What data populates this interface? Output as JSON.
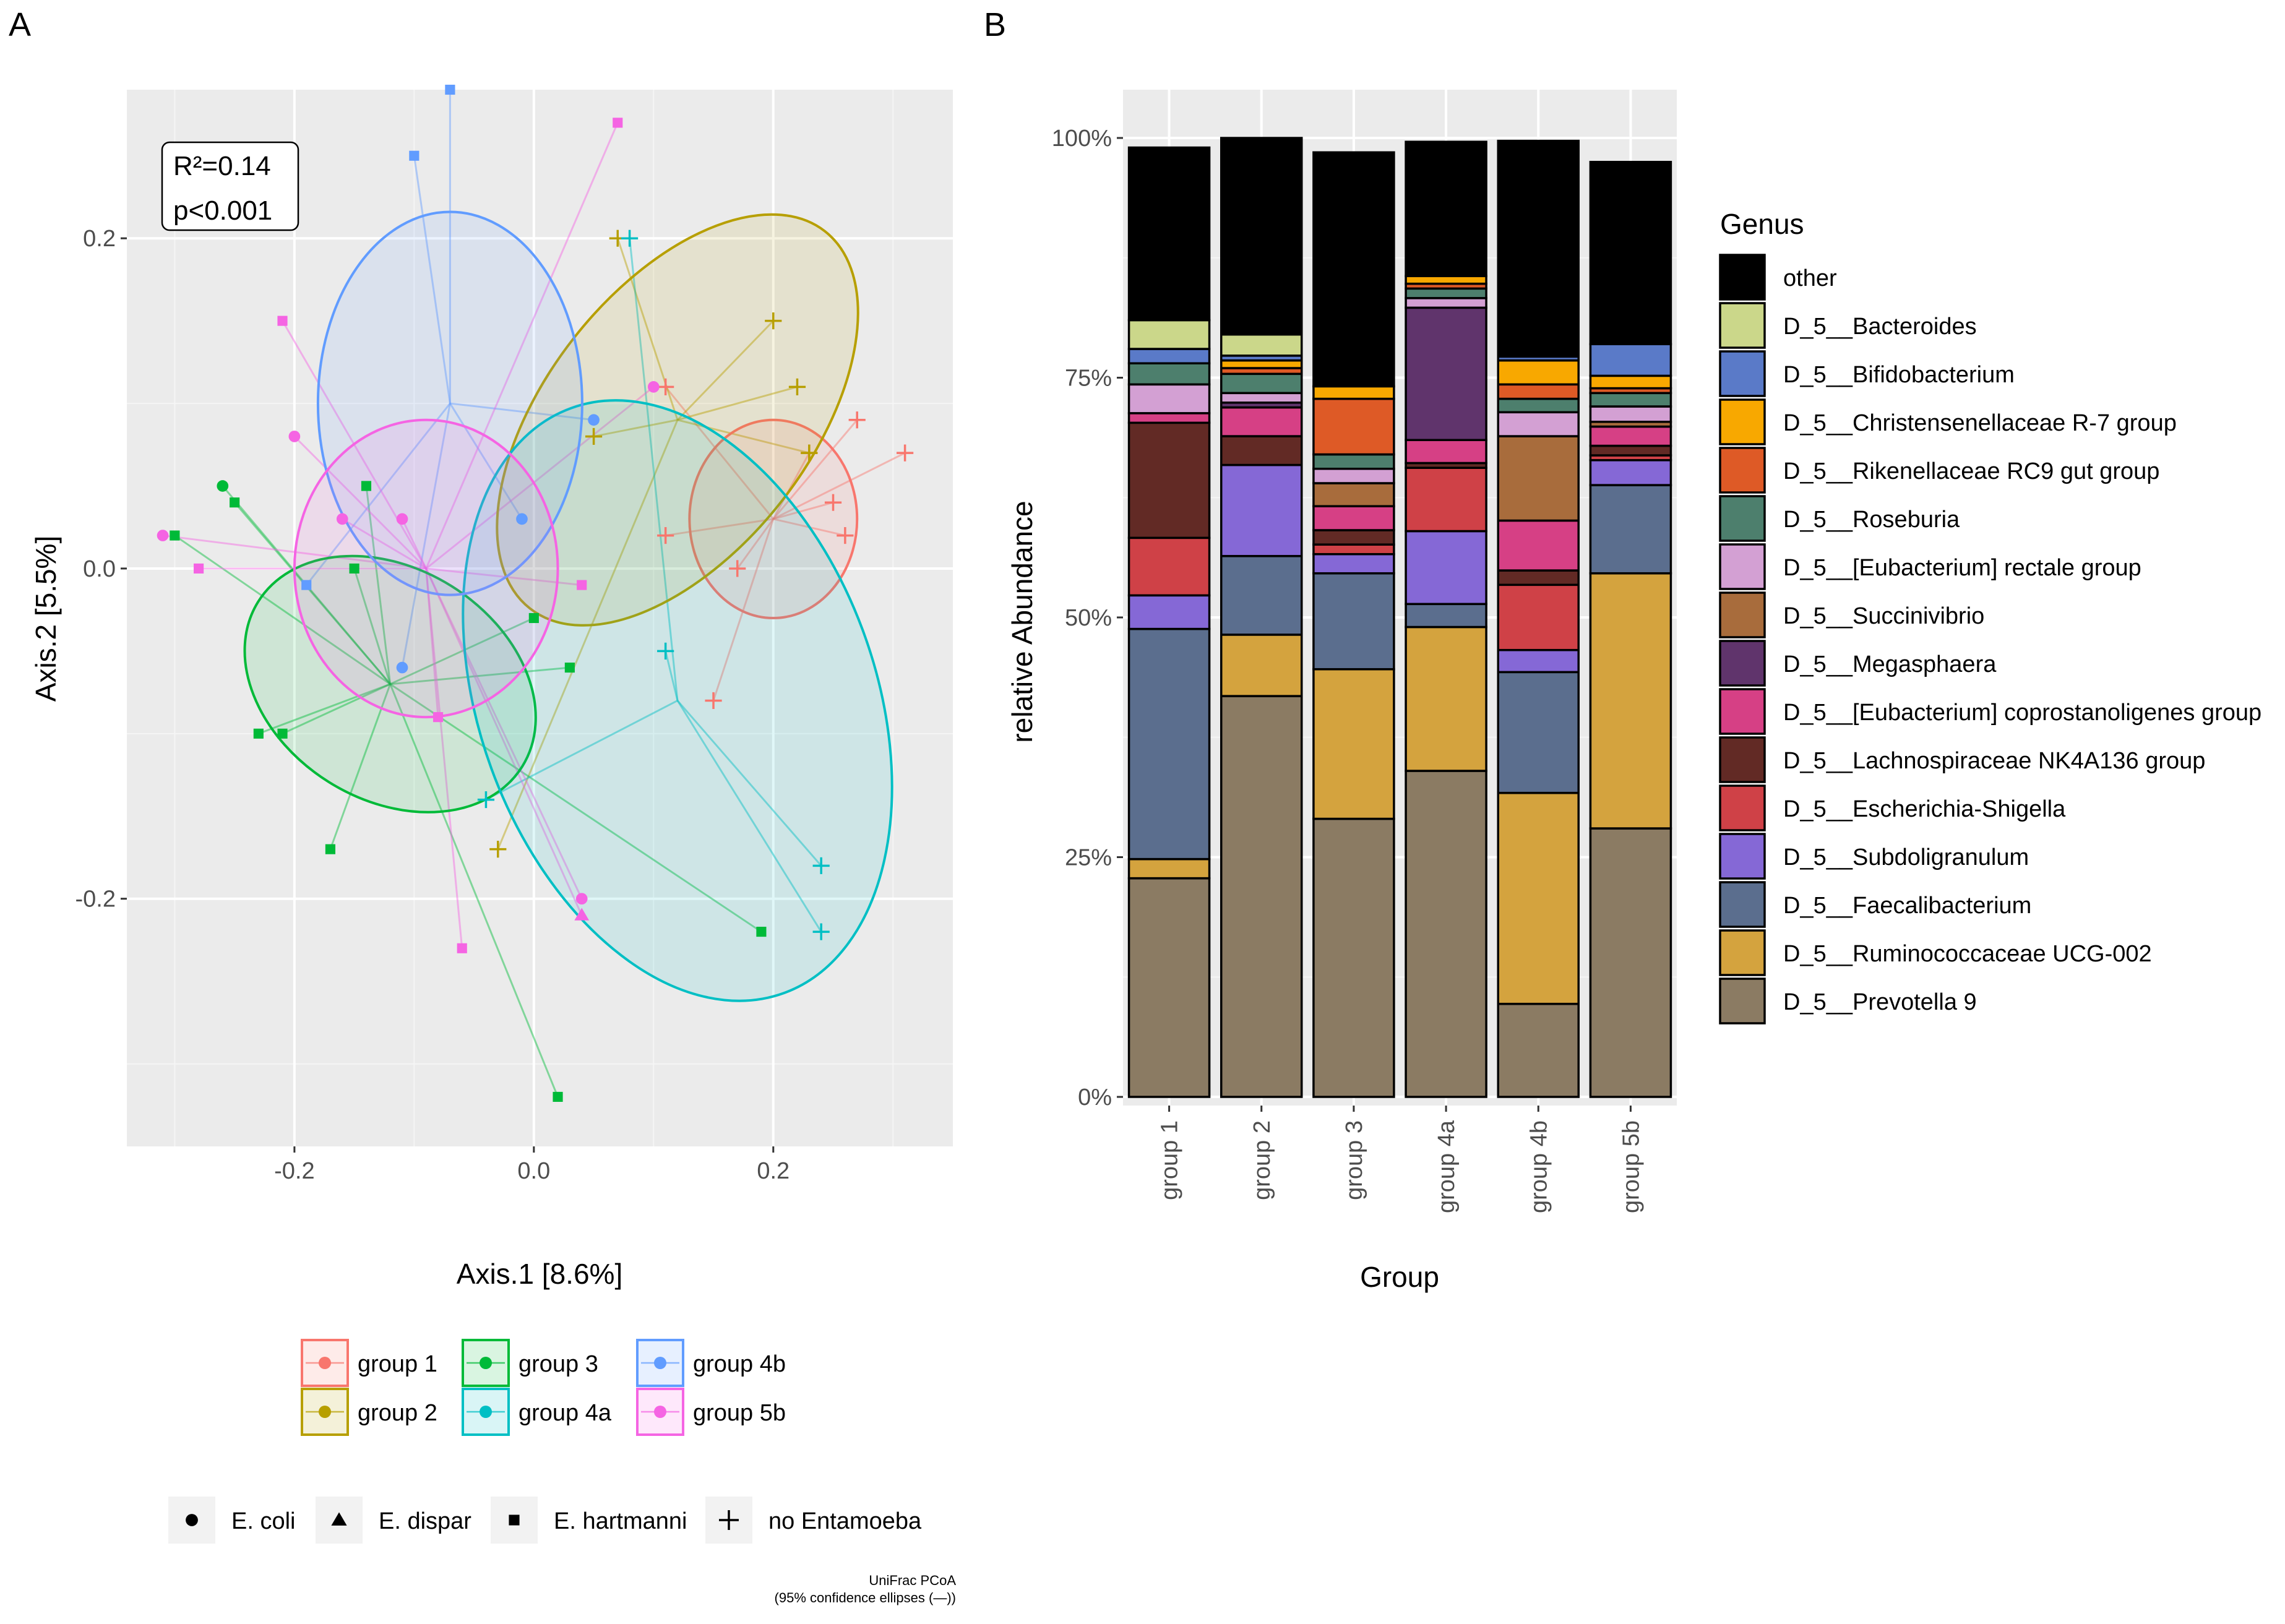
{
  "panels": {
    "left_label": "A",
    "right_label": "B"
  },
  "chart_data": [
    {
      "type": "scatter",
      "title": "UniFrac PCoA",
      "subtitle": "(95% confidence ellipses (—))",
      "xlabel": "Axis.1   [8.6%]",
      "ylabel": "Axis.2   [5.5%]",
      "xlim": [
        -0.34,
        0.35
      ],
      "ylim": [
        -0.35,
        0.29
      ],
      "x_ticks": [
        -0.2,
        0.0,
        0.2
      ],
      "x_tick_labels": [
        "-0.2",
        "0.0",
        "0.2"
      ],
      "y_ticks": [
        -0.2,
        0.0,
        0.2
      ],
      "y_tick_labels": [
        "-0.2",
        "0.0",
        "0.2"
      ],
      "annotation": {
        "r2": "R²=0.14",
        "p": "p<0.001"
      },
      "groups": [
        {
          "name": "group 1",
          "color": "#f8766d",
          "centroid": [
            0.2,
            0.03
          ],
          "ellipse": {
            "rx": 0.07,
            "ry": 0.06,
            "angle": 0
          },
          "points": [
            {
              "x": 0.27,
              "y": 0.09,
              "shape": "plus"
            },
            {
              "x": 0.31,
              "y": 0.07,
              "shape": "plus"
            },
            {
              "x": 0.23,
              "y": 0.07,
              "shape": "plus"
            },
            {
              "x": 0.25,
              "y": 0.04,
              "shape": "plus"
            },
            {
              "x": 0.26,
              "y": 0.02,
              "shape": "plus"
            },
            {
              "x": 0.17,
              "y": 0.0,
              "shape": "plus"
            },
            {
              "x": 0.11,
              "y": 0.02,
              "shape": "plus"
            },
            {
              "x": 0.15,
              "y": -0.08,
              "shape": "plus"
            },
            {
              "x": 0.11,
              "y": 0.11,
              "shape": "plus"
            }
          ]
        },
        {
          "name": "group 2",
          "color": "#b79f00",
          "centroid": [
            0.12,
            0.09
          ],
          "ellipse": {
            "rx": 0.2,
            "ry": 0.08,
            "angle": -52
          },
          "points": [
            {
              "x": 0.07,
              "y": 0.2,
              "shape": "plus"
            },
            {
              "x": 0.2,
              "y": 0.15,
              "shape": "plus"
            },
            {
              "x": 0.22,
              "y": 0.11,
              "shape": "plus"
            },
            {
              "x": 0.05,
              "y": 0.08,
              "shape": "plus"
            },
            {
              "x": 0.23,
              "y": 0.07,
              "shape": "plus"
            },
            {
              "x": -0.03,
              "y": -0.17,
              "shape": "plus"
            }
          ]
        },
        {
          "name": "group 3",
          "color": "#00ba38",
          "centroid": [
            -0.12,
            -0.07
          ],
          "ellipse": {
            "rx": 0.13,
            "ry": 0.07,
            "angle": 32
          },
          "points": [
            {
              "x": -0.26,
              "y": 0.05,
              "shape": "circle"
            },
            {
              "x": -0.25,
              "y": 0.04,
              "shape": "square"
            },
            {
              "x": -0.3,
              "y": 0.02,
              "shape": "square"
            },
            {
              "x": -0.14,
              "y": 0.05,
              "shape": "square"
            },
            {
              "x": -0.15,
              "y": 0.0,
              "shape": "square"
            },
            {
              "x": 0.0,
              "y": -0.03,
              "shape": "square"
            },
            {
              "x": 0.03,
              "y": -0.06,
              "shape": "square"
            },
            {
              "x": -0.23,
              "y": -0.1,
              "shape": "square"
            },
            {
              "x": -0.21,
              "y": -0.1,
              "shape": "square"
            },
            {
              "x": -0.17,
              "y": -0.17,
              "shape": "square"
            },
            {
              "x": 0.19,
              "y": -0.22,
              "shape": "square"
            },
            {
              "x": 0.02,
              "y": -0.32,
              "shape": "square"
            }
          ]
        },
        {
          "name": "group 4a",
          "color": "#00bfc4",
          "centroid": [
            0.12,
            -0.08
          ],
          "ellipse": {
            "rx": 0.26,
            "ry": 0.12,
            "angle": 70
          },
          "points": [
            {
              "x": 0.08,
              "y": 0.2,
              "shape": "plus"
            },
            {
              "x": 0.11,
              "y": -0.05,
              "shape": "plus"
            },
            {
              "x": 0.24,
              "y": -0.18,
              "shape": "plus"
            },
            {
              "x": 0.24,
              "y": -0.22,
              "shape": "plus"
            },
            {
              "x": -0.04,
              "y": -0.14,
              "shape": "plus"
            }
          ]
        },
        {
          "name": "group 4b",
          "color": "#619cff",
          "centroid": [
            -0.07,
            0.1
          ],
          "ellipse": {
            "rx": 0.16,
            "ry": 0.08,
            "angle": 90
          },
          "points": [
            {
              "x": -0.07,
              "y": 0.29,
              "shape": "square"
            },
            {
              "x": -0.1,
              "y": 0.25,
              "shape": "square"
            },
            {
              "x": 0.05,
              "y": 0.09,
              "shape": "circle"
            },
            {
              "x": -0.01,
              "y": 0.03,
              "shape": "circle"
            },
            {
              "x": -0.19,
              "y": -0.01,
              "shape": "square"
            },
            {
              "x": -0.11,
              "y": -0.06,
              "shape": "circle"
            }
          ]
        },
        {
          "name": "group 5b",
          "color": "#f564e3",
          "centroid": [
            -0.09,
            0.0
          ],
          "ellipse": {
            "rx": 0.11,
            "ry": 0.09,
            "angle": 0
          },
          "points": [
            {
              "x": 0.07,
              "y": 0.27,
              "shape": "square"
            },
            {
              "x": -0.21,
              "y": 0.15,
              "shape": "square"
            },
            {
              "x": -0.2,
              "y": 0.08,
              "shape": "circle"
            },
            {
              "x": -0.16,
              "y": 0.03,
              "shape": "circle"
            },
            {
              "x": -0.11,
              "y": 0.03,
              "shape": "circle"
            },
            {
              "x": -0.31,
              "y": 0.02,
              "shape": "circle"
            },
            {
              "x": -0.28,
              "y": 0.0,
              "shape": "square"
            },
            {
              "x": 0.1,
              "y": 0.11,
              "shape": "circle"
            },
            {
              "x": 0.04,
              "y": -0.01,
              "shape": "square"
            },
            {
              "x": -0.08,
              "y": -0.09,
              "shape": "square"
            },
            {
              "x": 0.04,
              "y": -0.2,
              "shape": "circle"
            },
            {
              "x": 0.04,
              "y": -0.21,
              "shape": "triangle"
            },
            {
              "x": -0.06,
              "y": -0.23,
              "shape": "square"
            }
          ]
        }
      ],
      "legend_groups": [
        "group 1",
        "group 2",
        "group 3",
        "group 4a",
        "group 4b",
        "group 5b"
      ],
      "legend_shapes": [
        {
          "label": "E. coli",
          "shape": "circle"
        },
        {
          "label": "E. dispar",
          "shape": "triangle"
        },
        {
          "label": "E. hartmanni",
          "shape": "square"
        },
        {
          "label": "no Entamoeba",
          "shape": "plus"
        }
      ]
    },
    {
      "type": "bar",
      "stacked": true,
      "xlabel": "Group",
      "ylabel": "relative Abundance",
      "ylim": [
        0,
        100
      ],
      "y_ticks": [
        0,
        25,
        50,
        75,
        100
      ],
      "y_tick_labels": [
        "0%",
        "25%",
        "50%",
        "75%",
        "100%"
      ],
      "categories": [
        "group 1",
        "group 2",
        "group 3",
        "group 4a",
        "group 4b",
        "group 5b"
      ],
      "legend_title": "Genus",
      "series": [
        {
          "name": "D_5__Prevotella 9",
          "color": "#8b7b63",
          "values": [
            22.8,
            41.8,
            29.0,
            34.0,
            9.7,
            28.0
          ]
        },
        {
          "name": "D_5__Ruminococcaceae UCG-002",
          "color": "#d4a33e",
          "values": [
            2.0,
            6.4,
            15.6,
            15.0,
            22.0,
            26.6
          ]
        },
        {
          "name": "D_5__Faecalibacterium",
          "color": "#5b6e8e",
          "values": [
            24.0,
            8.2,
            10.0,
            2.4,
            12.6,
            9.2
          ]
        },
        {
          "name": "D_5__Subdoligranulum",
          "color": "#8568d6",
          "values": [
            3.5,
            9.5,
            2.0,
            7.6,
            2.3,
            2.6
          ]
        },
        {
          "name": "D_5__Escherichia-Shigella",
          "color": "#cf4147",
          "values": [
            6.0,
            0.0,
            1.0,
            6.6,
            6.8,
            0.5
          ]
        },
        {
          "name": "D_5__Lachnospiraceae NK4A136 group",
          "color": "#622a25",
          "values": [
            12.0,
            3.0,
            1.5,
            0.5,
            1.5,
            1.0
          ]
        },
        {
          "name": "D_5__[Eubacterium] coprostanoligenes group",
          "color": "#d64085",
          "values": [
            1.0,
            3.0,
            2.5,
            2.4,
            5.2,
            2.0
          ]
        },
        {
          "name": "D_5__Megasphaera",
          "color": "#60346c",
          "values": [
            0.0,
            0.5,
            0.0,
            13.8,
            0.0,
            0.0
          ]
        },
        {
          "name": "D_5__Succinivibrio",
          "color": "#a86c3c",
          "values": [
            0.0,
            0.0,
            2.4,
            0.0,
            8.8,
            0.5
          ]
        },
        {
          "name": "D_5__[Eubacterium] rectale group",
          "color": "#d3a0d3",
          "values": [
            3.0,
            1.0,
            1.5,
            1.0,
            2.5,
            1.6
          ]
        },
        {
          "name": "D_5__Roseburia",
          "color": "#4d7f6d",
          "values": [
            2.2,
            2.0,
            1.5,
            1.0,
            1.4,
            1.4
          ]
        },
        {
          "name": "D_5__Rikenellaceae RC9 gut group",
          "color": "#de5a26",
          "values": [
            0.0,
            0.6,
            5.8,
            0.5,
            1.5,
            0.5
          ]
        },
        {
          "name": "D_5__Christensenellaceae R-7 group",
          "color": "#f8a800",
          "values": [
            0.0,
            0.8,
            1.3,
            0.8,
            2.5,
            1.3
          ]
        },
        {
          "name": "D_5__Bifidobacterium",
          "color": "#5a7ac8",
          "values": [
            1.5,
            0.5,
            0.0,
            0.0,
            0.4,
            3.3
          ]
        },
        {
          "name": "D_5__Bacteroides",
          "color": "#cbd78a",
          "values": [
            3.0,
            2.2,
            0.0,
            0.0,
            0.0,
            0.0
          ]
        },
        {
          "name": "other",
          "color": "#000000",
          "values": [
            18.0,
            20.5,
            24.4,
            14.0,
            22.5,
            19.0
          ]
        }
      ],
      "legend_order": [
        "other",
        "D_5__Bacteroides",
        "D_5__Bifidobacterium",
        "D_5__Christensenellaceae R-7 group",
        "D_5__Rikenellaceae RC9 gut group",
        "D_5__Roseburia",
        "D_5__[Eubacterium] rectale group",
        "D_5__Succinivibrio",
        "D_5__Megasphaera",
        "D_5__[Eubacterium] coprostanoligenes group",
        "D_5__Lachnospiraceae NK4A136 group",
        "D_5__Escherichia-Shigella",
        "D_5__Subdoligranulum",
        "D_5__Faecalibacterium",
        "D_5__Ruminococcaceae UCG-002",
        "D_5__Prevotella 9"
      ]
    }
  ]
}
